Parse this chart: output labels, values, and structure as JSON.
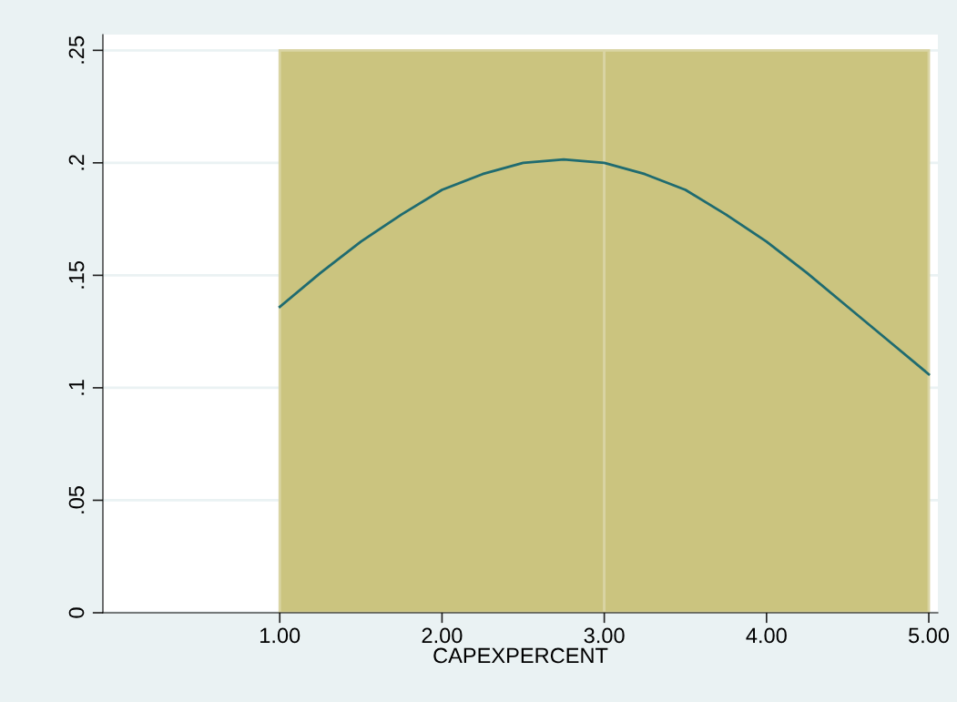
{
  "chart_data": {
    "type": "histogram",
    "xlabel": "CAPEXPERCENT",
    "bins": [
      1,
      3,
      5
    ],
    "values": [
      0.25,
      0.25
    ],
    "color": "#cbc47f",
    "series": [
      {
        "type": "line",
        "color": "#1f6b70",
        "x": [
          1,
          1.25,
          1.5,
          1.75,
          2,
          2.25,
          2.5,
          2.75,
          3,
          3.25,
          3.5,
          3.75,
          4,
          4.25,
          4.5,
          4.75,
          5
        ],
        "values": [
          0.136,
          0.151,
          0.165,
          0.177,
          0.188,
          0.195,
          0.2,
          0.2015,
          0.2,
          0.195,
          0.188,
          0.177,
          0.165,
          0.151,
          0.136,
          0.121,
          0.106
        ]
      }
    ],
    "xlim": [
      -0.09,
      5.056
    ],
    "ylim": [
      0,
      0.257
    ],
    "xticks": [
      {
        "value": 1,
        "label": "1.00"
      },
      {
        "value": 2,
        "label": "2.00"
      },
      {
        "value": 3,
        "label": "3.00"
      },
      {
        "value": 4,
        "label": "4.00"
      },
      {
        "value": 5,
        "label": "5.00"
      }
    ],
    "yticks": [
      0,
      {
        "value": 0.05,
        "label": ".05"
      },
      {
        "value": 0.1,
        "label": ".1"
      },
      {
        "value": 0.15,
        "label": ".15"
      },
      {
        "value": 0.2,
        "label": ".2"
      },
      {
        "value": 0.25,
        "label": ".25"
      }
    ],
    "grid": "y"
  }
}
